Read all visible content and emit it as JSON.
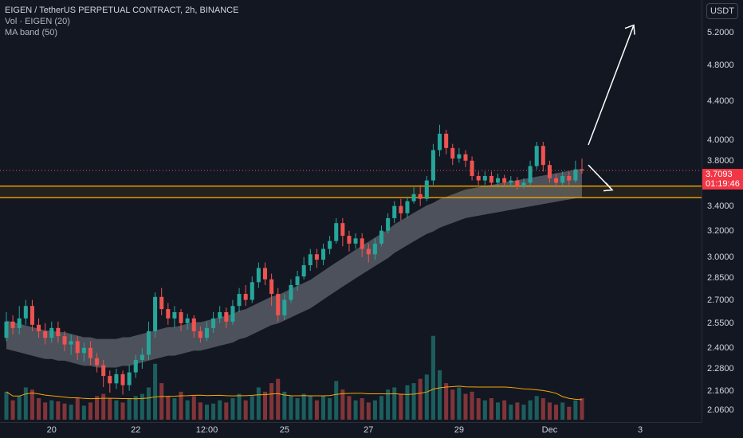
{
  "legend": {
    "title": "EIGEN / TetherUS PERPETUAL CONTRACT, 2h, BINANCE",
    "vol": "Vol · EIGEN (20)",
    "ma": "MA band (50)"
  },
  "currency_button": "USDT",
  "last_price": {
    "price": "3.7093",
    "countdown": "01:19:46"
  },
  "colors": {
    "background": "#131722",
    "up": "#26a69a",
    "down": "#ef5350",
    "zone": "#f7a600",
    "ma_band": "#9598a1",
    "vol_ma": "#f7a600",
    "arrow": "#ffffff"
  },
  "chart_data": {
    "type": "candlestick",
    "price_scale": "log",
    "price_ticks": [
      "5.2000",
      "4.8000",
      "4.4000",
      "4.0000",
      "3.8000",
      "3.4000",
      "3.2000",
      "3.0000",
      "2.8500",
      "2.7000",
      "2.5500",
      "2.4000",
      "2.2800",
      "2.1600",
      "2.0600"
    ],
    "time_ticks": [
      "20",
      "22",
      "12:00",
      "25",
      "27",
      "29",
      "Dec",
      "3"
    ],
    "ylim": [
      2.02,
      5.55
    ],
    "resistance_zone": [
      3.47,
      3.57
    ],
    "projection": {
      "from_price": 3.95,
      "to_price": 5.3,
      "alt_to_price": 3.55
    },
    "candles": [
      [
        2.46,
        2.56,
        2.62,
        2.44
      ],
      [
        2.56,
        2.52,
        2.6,
        2.48
      ],
      [
        2.52,
        2.58,
        2.66,
        2.48
      ],
      [
        2.58,
        2.66,
        2.7,
        2.54
      ],
      [
        2.66,
        2.54,
        2.7,
        2.5
      ],
      [
        2.54,
        2.5,
        2.58,
        2.46
      ],
      [
        2.5,
        2.46,
        2.55,
        2.42
      ],
      [
        2.46,
        2.52,
        2.56,
        2.43
      ],
      [
        2.52,
        2.47,
        2.56,
        2.43
      ],
      [
        2.47,
        2.42,
        2.5,
        2.38
      ],
      [
        2.42,
        2.44,
        2.48,
        2.36
      ],
      [
        2.44,
        2.37,
        2.47,
        2.33
      ],
      [
        2.37,
        2.4,
        2.43,
        2.32
      ],
      [
        2.4,
        2.34,
        2.44,
        2.3
      ],
      [
        2.34,
        2.3,
        2.37,
        2.26
      ],
      [
        2.3,
        2.24,
        2.33,
        2.18
      ],
      [
        2.24,
        2.2,
        2.27,
        2.15
      ],
      [
        2.2,
        2.25,
        2.28,
        2.17
      ],
      [
        2.25,
        2.19,
        2.27,
        2.14
      ],
      [
        2.19,
        2.26,
        2.3,
        2.16
      ],
      [
        2.26,
        2.33,
        2.36,
        2.23
      ],
      [
        2.33,
        2.36,
        2.4,
        2.28
      ],
      [
        2.36,
        2.5,
        2.56,
        2.33
      ],
      [
        2.5,
        2.72,
        2.75,
        2.46
      ],
      [
        2.72,
        2.64,
        2.78,
        2.6
      ],
      [
        2.64,
        2.58,
        2.68,
        2.54
      ],
      [
        2.58,
        2.62,
        2.66,
        2.52
      ],
      [
        2.62,
        2.55,
        2.64,
        2.5
      ],
      [
        2.55,
        2.58,
        2.61,
        2.51
      ],
      [
        2.58,
        2.5,
        2.6,
        2.46
      ],
      [
        2.5,
        2.46,
        2.53,
        2.43
      ],
      [
        2.46,
        2.52,
        2.56,
        2.44
      ],
      [
        2.52,
        2.58,
        2.62,
        2.49
      ],
      [
        2.58,
        2.62,
        2.66,
        2.55
      ],
      [
        2.62,
        2.56,
        2.65,
        2.52
      ],
      [
        2.56,
        2.66,
        2.7,
        2.54
      ],
      [
        2.66,
        2.74,
        2.78,
        2.62
      ],
      [
        2.74,
        2.7,
        2.8,
        2.66
      ],
      [
        2.7,
        2.82,
        2.86,
        2.68
      ],
      [
        2.82,
        2.92,
        2.96,
        2.78
      ],
      [
        2.92,
        2.84,
        2.96,
        2.8
      ],
      [
        2.84,
        2.74,
        2.88,
        2.66
      ],
      [
        2.74,
        2.6,
        2.78,
        2.56
      ],
      [
        2.6,
        2.7,
        2.74,
        2.57
      ],
      [
        2.7,
        2.8,
        2.84,
        2.68
      ],
      [
        2.8,
        2.86,
        2.9,
        2.76
      ],
      [
        2.86,
        2.94,
        3.0,
        2.84
      ],
      [
        2.94,
        3.02,
        3.06,
        2.9
      ],
      [
        3.02,
        2.98,
        3.06,
        2.92
      ],
      [
        2.98,
        3.06,
        3.1,
        2.94
      ],
      [
        3.06,
        3.12,
        3.16,
        3.02
      ],
      [
        3.12,
        3.26,
        3.3,
        3.1
      ],
      [
        3.26,
        3.16,
        3.3,
        3.08
      ],
      [
        3.16,
        3.1,
        3.2,
        3.04
      ],
      [
        3.1,
        3.14,
        3.18,
        3.06
      ],
      [
        3.14,
        3.06,
        3.18,
        3.0
      ],
      [
        3.06,
        3.02,
        3.1,
        2.96
      ],
      [
        3.02,
        3.1,
        3.14,
        2.98
      ],
      [
        3.1,
        3.2,
        3.24,
        3.08
      ],
      [
        3.2,
        3.3,
        3.34,
        3.18
      ],
      [
        3.3,
        3.4,
        3.44,
        3.26
      ],
      [
        3.4,
        3.34,
        3.46,
        3.28
      ],
      [
        3.34,
        3.44,
        3.48,
        3.3
      ],
      [
        3.44,
        3.5,
        3.56,
        3.42
      ],
      [
        3.5,
        3.46,
        3.58,
        3.4
      ],
      [
        3.46,
        3.62,
        3.66,
        3.44
      ],
      [
        3.62,
        3.9,
        3.96,
        3.58
      ],
      [
        3.9,
        4.06,
        4.15,
        3.84
      ],
      [
        4.06,
        3.92,
        4.1,
        3.86
      ],
      [
        3.92,
        3.82,
        3.96,
        3.76
      ],
      [
        3.82,
        3.86,
        3.92,
        3.78
      ],
      [
        3.86,
        3.8,
        3.9,
        3.74
      ],
      [
        3.8,
        3.66,
        3.84,
        3.62
      ],
      [
        3.66,
        3.62,
        3.7,
        3.58
      ],
      [
        3.62,
        3.66,
        3.7,
        3.58
      ],
      [
        3.66,
        3.6,
        3.7,
        3.57
      ],
      [
        3.6,
        3.64,
        3.68,
        3.58
      ],
      [
        3.64,
        3.6,
        3.67,
        3.57
      ],
      [
        3.6,
        3.62,
        3.66,
        3.56
      ],
      [
        3.62,
        3.57,
        3.65,
        3.54
      ],
      [
        3.57,
        3.6,
        3.64,
        3.55
      ],
      [
        3.6,
        3.75,
        3.8,
        3.58
      ],
      [
        3.75,
        3.94,
        3.98,
        3.72
      ],
      [
        3.94,
        3.76,
        3.98,
        3.7
      ],
      [
        3.76,
        3.64,
        3.8,
        3.6
      ],
      [
        3.64,
        3.6,
        3.68,
        3.56
      ],
      [
        3.6,
        3.66,
        3.7,
        3.58
      ],
      [
        3.66,
        3.62,
        3.7,
        3.58
      ],
      [
        3.62,
        3.72,
        3.8,
        3.6
      ],
      [
        3.72,
        3.709,
        3.82,
        3.68
      ]
    ],
    "volume": [
      0.26,
      0.18,
      0.22,
      0.3,
      0.28,
      0.2,
      0.16,
      0.18,
      0.17,
      0.15,
      0.14,
      0.2,
      0.13,
      0.16,
      0.22,
      0.24,
      0.2,
      0.18,
      0.16,
      0.2,
      0.22,
      0.24,
      0.3,
      0.52,
      0.34,
      0.22,
      0.2,
      0.26,
      0.18,
      0.22,
      0.16,
      0.14,
      0.15,
      0.18,
      0.16,
      0.2,
      0.24,
      0.18,
      0.22,
      0.3,
      0.26,
      0.34,
      0.38,
      0.26,
      0.22,
      0.2,
      0.24,
      0.22,
      0.18,
      0.22,
      0.2,
      0.36,
      0.28,
      0.22,
      0.18,
      0.2,
      0.16,
      0.18,
      0.22,
      0.28,
      0.3,
      0.24,
      0.32,
      0.34,
      0.38,
      0.42,
      0.78,
      0.46,
      0.34,
      0.28,
      0.3,
      0.24,
      0.26,
      0.2,
      0.18,
      0.2,
      0.16,
      0.18,
      0.14,
      0.16,
      0.14,
      0.18,
      0.22,
      0.2,
      0.16,
      0.14,
      0.16,
      0.12,
      0.18,
      0.2
    ],
    "ma_band": [
      2.48,
      2.47,
      2.46,
      2.45,
      2.44,
      2.43,
      2.42,
      2.42,
      2.41,
      2.41,
      2.4,
      2.39,
      2.38,
      2.38,
      2.37,
      2.37,
      2.37,
      2.37,
      2.38,
      2.38,
      2.39,
      2.4,
      2.41,
      2.42,
      2.43,
      2.44,
      2.44,
      2.45,
      2.46,
      2.47,
      2.47,
      2.48,
      2.49,
      2.5,
      2.51,
      2.52,
      2.54,
      2.55,
      2.57,
      2.59,
      2.61,
      2.63,
      2.64,
      2.66,
      2.68,
      2.7,
      2.72,
      2.74,
      2.77,
      2.8,
      2.83,
      2.86,
      2.89,
      2.92,
      2.95,
      2.98,
      3.01,
      3.04,
      3.07,
      3.1,
      3.14,
      3.17,
      3.2,
      3.23,
      3.26,
      3.29,
      3.31,
      3.34,
      3.36,
      3.38,
      3.4,
      3.42,
      3.43,
      3.44,
      3.45,
      3.46,
      3.47,
      3.48,
      3.49,
      3.5,
      3.51,
      3.52,
      3.53,
      3.54,
      3.55,
      3.56,
      3.57,
      3.58,
      3.59,
      3.6
    ]
  }
}
